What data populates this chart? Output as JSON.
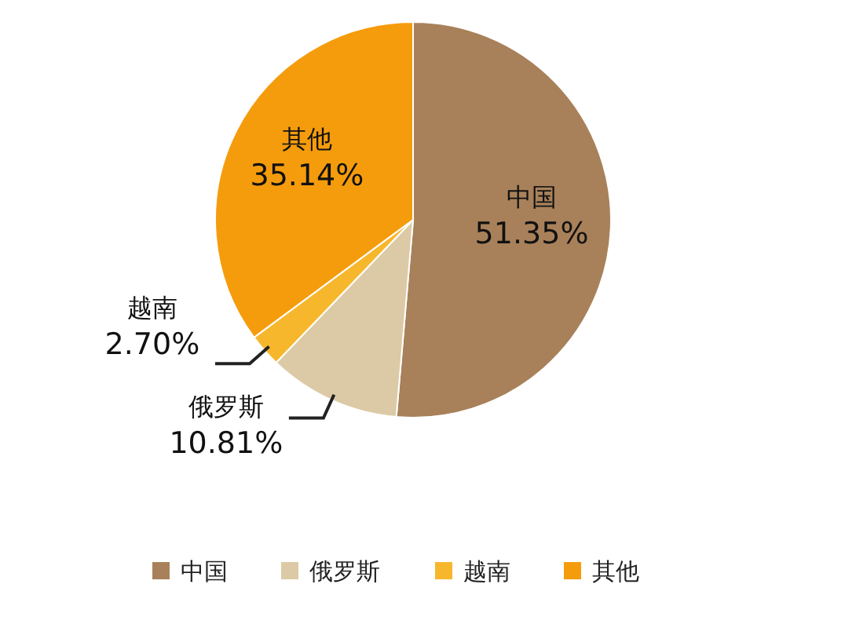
{
  "chart_data": {
    "type": "pie",
    "categories": [
      "中国",
      "俄罗斯",
      "越南",
      "其他"
    ],
    "values": [
      51.35,
      10.81,
      2.7,
      35.14
    ],
    "value_labels": [
      "51.35%",
      "10.81%",
      "2.70%",
      "35.14%"
    ],
    "colors": [
      "#a8815a",
      "#dccaa6",
      "#f7b72d",
      "#f59c0d"
    ],
    "legend": "bottom"
  }
}
